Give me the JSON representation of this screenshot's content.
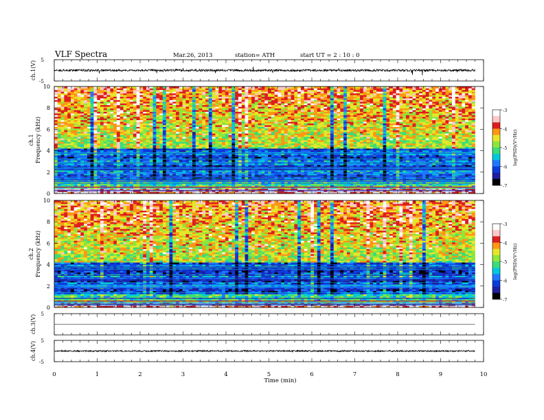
{
  "header": {
    "title": "VLF  Spectra",
    "date": "Mar.26, 2013",
    "station": "station= ATH",
    "start": "start  UT  =   2  : 10 : 0"
  },
  "colors": {
    "cmap": [
      "#000000",
      "#1e1ea0",
      "#0a3cdc",
      "#1e78ff",
      "#00c8dc",
      "#3cdc78",
      "#8ce63c",
      "#e6e628",
      "#ff9614",
      "#dc1e1e",
      "#ffc8c8",
      "#ffffff"
    ]
  },
  "chart_data": [
    {
      "type": "line",
      "panel": "ch1-waveform",
      "ylabel": "ch.1(V)",
      "ylim": [
        -5,
        5
      ],
      "yticks": [
        "5",
        "-5"
      ],
      "x_range_min": [
        0,
        9.8
      ],
      "baseline_v": 0,
      "noise_amplitude_v": 0.5,
      "spike_amplitude_v": 2
    },
    {
      "type": "heatmap",
      "panel": "ch1-spectrogram",
      "ylabel": "Frequency  (kHz)",
      "channel_label": "ch.1",
      "ylim": [
        0,
        10
      ],
      "yticks": [
        "0",
        "2",
        "4",
        "6",
        "8",
        "10"
      ],
      "x_range_min": [
        0,
        9.8
      ],
      "colorbar": {
        "label": "log(PSD)(V²/Hz)",
        "range": [
          -7,
          -3
        ],
        "ticks": [
          "-3",
          "-4",
          "-5",
          "-6",
          "-7"
        ]
      }
    },
    {
      "type": "heatmap",
      "panel": "ch2-spectrogram",
      "ylabel": "Frequency  (kHz)",
      "channel_label": "ch.2",
      "ylim": [
        0,
        10
      ],
      "yticks": [
        "0",
        "2",
        "4",
        "6",
        "8",
        "10"
      ],
      "x_range_min": [
        0,
        9.8
      ],
      "colorbar": {
        "label": "log(PSD)(V²/Hz)",
        "range": [
          -7,
          -3
        ],
        "ticks": [
          "-3",
          "-4",
          "-5",
          "-6",
          "-7"
        ]
      }
    },
    {
      "type": "line",
      "panel": "ch3-waveform",
      "ylabel": "ch.3(V)",
      "ylim": [
        -5,
        5
      ],
      "yticks": [
        "5"
      ],
      "x_range_min": [
        0,
        9.8
      ],
      "baseline_v": 0,
      "noise_amplitude_v": 0
    },
    {
      "type": "line",
      "panel": "ch4-waveform",
      "ylabel": "ch.4(V)",
      "ylim": [
        -5,
        5
      ],
      "yticks": [
        "5",
        "-5"
      ],
      "x_range_min": [
        0,
        9.8
      ],
      "baseline_v": 0,
      "noise_amplitude_v": 0.35
    }
  ],
  "xaxis": {
    "label": "Time  (min)",
    "ticks": [
      "0",
      "1",
      "2",
      "3",
      "4",
      "5",
      "6",
      "7",
      "8",
      "9",
      "10"
    ],
    "range": [
      0,
      10
    ]
  }
}
